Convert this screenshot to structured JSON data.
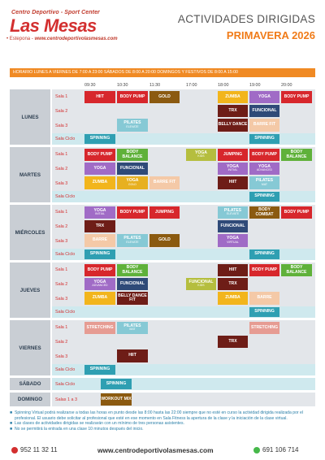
{
  "header": {
    "logo_top": "Centro Deportivo - Sport Center",
    "logo_name": "Las Mesas",
    "logo_city": "• Estepona",
    "logo_web": "www.centrodeportivolasmesas.com",
    "title": "ACTIVIDADES DIRIGIDAS",
    "season": "PRIMAVERA 2026"
  },
  "hours_bar": "HORARIO   LUNES A VIERNES DE 7:00 A 23:00   SÁBADOS DE 8:00 A 20:00   DOMINGOS Y FESTIVOS DE 8:00 A 15:00",
  "times": [
    "09:30",
    "10:30",
    "11:30",
    "17:00",
    "18:00",
    "19:00",
    "20:00"
  ],
  "days": [
    "LUNES",
    "MARTES",
    "MIÉRCOLES",
    "JUEVES",
    "VIERNES",
    "SÁBADO",
    "DOMINGO"
  ],
  "rooms": {
    "sala1": "Sala 1",
    "sala2": "Sala 2",
    "sala3": "Sala 3",
    "ciclo": "Sala Ciclo",
    "salas13": "Salas 1 a 3"
  },
  "classes": [
    "HIIT",
    "BODY PUMP",
    "GOLD",
    "ZUMBA",
    "YOGA",
    "BODY PUMP",
    "TRX",
    "FUNCIONAL",
    "PILATES",
    "BELLY DANCE",
    "BARRE FIT",
    "SPINNING",
    "SPINNING",
    "BODY PUMP",
    "BODY BALANCE",
    "YOGA",
    "JUMPING",
    "BODY PUMP",
    "BODY BALANCE",
    "YOGA",
    "FUNCIONAL",
    "YOGA",
    "YOGA",
    "ZUMBA",
    "YOGA",
    "GOLD",
    "BARRE FIT",
    "HIIT",
    "PILATES",
    "SPINNING",
    "YOGA",
    "BODY PUMP",
    "JUMPING",
    "PILATES",
    "BODY COMBAT",
    "BODY PUMP",
    "TRX",
    "FUNCIONAL",
    "BARRE",
    "PILATES",
    "GOLD",
    "YOGA",
    "SPINNING",
    "SPINNING",
    "BODY PUMP",
    "BODY BALANCE",
    "HIIT",
    "BODY PUMP",
    "BODY BALANCE",
    "YOGA",
    "FUNCIONAL",
    "FUNCIONAL",
    "TRX",
    "ZUMBA",
    "BELLY DANCE FIT",
    "ZUMBA",
    "BARRE",
    "SPINNING",
    "STRETCHING",
    "PILATES",
    "BODY PUMP",
    "STRETCHING",
    "TRX",
    "HIIT",
    "SPINNING",
    "SPINNING",
    "WORKOUT MIX"
  ],
  "subs": {
    "elevate": "ELEVATE",
    "kids": "KIDS",
    "initial": "INITIAL",
    "advanced": "ADVANCED",
    "gold": "GOLD",
    "mat": "MAT",
    "virtual": "VIRTUAL"
  },
  "notes": [
    "Spinning Virtual podrá realizarse a todas las horas en punto desde las 8:00 hasta las 22:00 siempre que no esté en curso la actividad dirigida realizada por el profesional. El usuario debe solicitar al profesional que esté en ese momento en Sala Fitness la apertura de la clase y la iniciación de la clase virtual.",
    "Las clases de actividades dirigidas se realizarán con un mínimo de tres personas asistentes.",
    "No se permitirá la entrada en una clase 10 minutos después del inicio."
  ],
  "footer": {
    "phone": "952 11 32 11",
    "web": "www.centrodeportivolasmesas.com",
    "whatsapp": "691 106 714"
  },
  "colors": {
    "brand_red": "#d32f2f",
    "accent_orange": "#f07b18"
  }
}
